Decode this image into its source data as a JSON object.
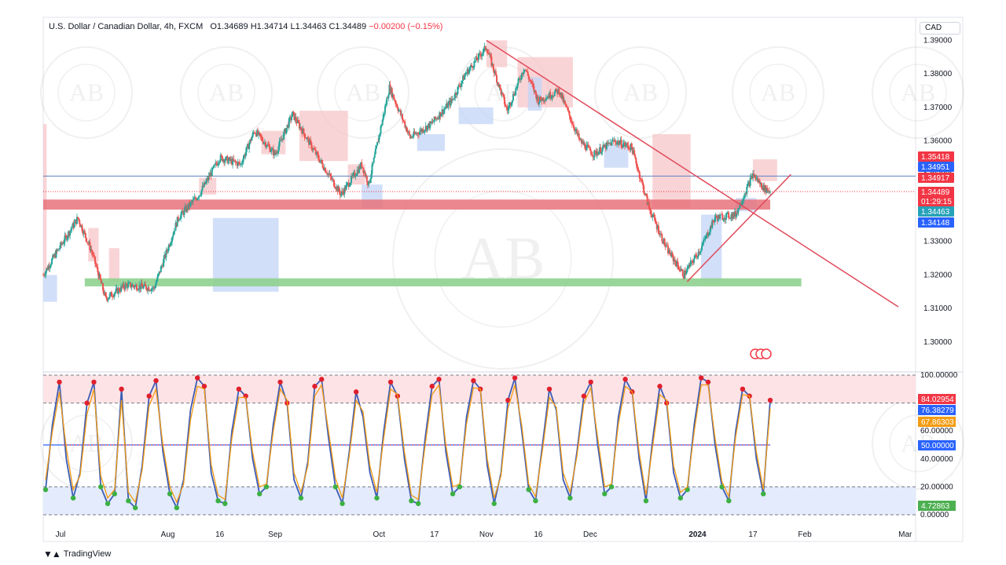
{
  "header": {
    "symbol": "U.S. Dollar / Canadian Dollar, 4h, FXCM",
    "open": "O1.34689",
    "high": "H1.34714",
    "low": "L1.34463",
    "close": "C1.34489",
    "change": "−0.00200 (−0.15%)"
  },
  "currency_button": "CAD",
  "footer": {
    "brand": "TradingView"
  },
  "watermark": {
    "letters": "AB"
  },
  "colors": {
    "up": "#26a69a",
    "down": "#ef5350",
    "supply_zone": "#f7c5c8",
    "demand_zone": "#c3d4f7",
    "resistance_band": "#e8727b",
    "support_band": "#8fd18f",
    "trendline": "#e04a5a",
    "stoch_k": "#3d5bb5",
    "stoch_d": "#f39c12"
  },
  "chart_data": [
    {
      "type": "candlestick",
      "title": "U.S. Dollar / Canadian Dollar, 4h, FXCM",
      "ylim": [
        1.292,
        1.3915
      ],
      "y_ticks": [
        "1.39000",
        "1.38000",
        "1.37000",
        "1.36000",
        "1.35000",
        "1.34000",
        "1.33000",
        "1.32000",
        "1.31000",
        "1.30000"
      ],
      "x_ticks": [
        "Jul",
        "Aug",
        "16",
        "Sep",
        "Oct",
        "17",
        "Nov",
        "16",
        "Dec",
        "2024",
        "17",
        "Feb",
        "Mar"
      ],
      "price_path": [
        [
          "2023-06-26",
          1.32
        ],
        [
          "2023-06-30",
          1.327
        ],
        [
          "2023-07-06",
          1.337
        ],
        [
          "2023-07-10",
          1.327
        ],
        [
          "2023-07-14",
          1.313
        ],
        [
          "2023-07-20",
          1.317
        ],
        [
          "2023-07-28",
          1.316
        ],
        [
          "2023-08-04",
          1.337
        ],
        [
          "2023-08-10",
          1.344
        ],
        [
          "2023-08-16",
          1.355
        ],
        [
          "2023-08-22",
          1.353
        ],
        [
          "2023-08-26",
          1.363
        ],
        [
          "2023-09-01",
          1.356
        ],
        [
          "2023-09-06",
          1.368
        ],
        [
          "2023-09-14",
          1.354
        ],
        [
          "2023-09-20",
          1.344
        ],
        [
          "2023-09-26",
          1.353
        ],
        [
          "2023-09-28",
          1.347
        ],
        [
          "2023-10-04",
          1.376
        ],
        [
          "2023-10-10",
          1.361
        ],
        [
          "2023-10-16",
          1.365
        ],
        [
          "2023-10-22",
          1.372
        ],
        [
          "2023-10-26",
          1.38
        ],
        [
          "2023-11-01",
          1.388
        ],
        [
          "2023-11-07",
          1.369
        ],
        [
          "2023-11-12",
          1.382
        ],
        [
          "2023-11-16",
          1.372
        ],
        [
          "2023-11-22",
          1.375
        ],
        [
          "2023-11-28",
          1.36
        ],
        [
          "2023-12-02",
          1.356
        ],
        [
          "2023-12-08",
          1.36
        ],
        [
          "2023-12-13",
          1.358
        ],
        [
          "2023-12-18",
          1.34
        ],
        [
          "2023-12-23",
          1.328
        ],
        [
          "2023-12-28",
          1.32
        ],
        [
          "2024-01-02",
          1.328
        ],
        [
          "2024-01-06",
          1.337
        ],
        [
          "2024-01-12",
          1.338
        ],
        [
          "2024-01-17",
          1.35
        ],
        [
          "2024-01-20",
          1.346
        ],
        [
          "2024-01-22",
          1.3449
        ]
      ],
      "last_close": 1.34489,
      "countdown": "01:29:15",
      "price_tags": [
        {
          "value": "1.35418",
          "color": "#f23645"
        },
        {
          "value": "1.34951",
          "color": "#2962ff"
        },
        {
          "value": "1.34917",
          "color": "#f23645"
        },
        {
          "value": "1.34489",
          "color": "#f23645"
        },
        {
          "value": "1.34463",
          "color": "#26a2b8"
        },
        {
          "value": "1.34148",
          "color": "#2962ff"
        }
      ],
      "support_band": [
        1.3166,
        1.319
      ],
      "resistance_band": [
        1.3395,
        1.3425
      ],
      "horizontal_line": 1.3495,
      "trendlines": [
        {
          "from": [
            "2023-11-01",
            1.39
          ],
          "to": [
            "2024-02-28",
            1.3105
          ]
        },
        {
          "from": [
            "2023-12-29",
            1.318
          ],
          "to": [
            "2024-01-28",
            1.35
          ]
        }
      ]
    },
    {
      "type": "line",
      "title": "",
      "ylim": [
        0,
        100
      ],
      "y_ticks": [
        "100.00000",
        "60.00000",
        "40.00000",
        "20.00000",
        "0.00000"
      ],
      "levels": [
        80,
        50,
        20
      ],
      "series": [
        {
          "values": [
            18,
            65,
            95,
            40,
            12,
            30,
            80,
            95,
            20,
            8,
            15,
            90,
            10,
            5,
            35,
            85,
            96,
            45,
            15,
            5,
            25,
            75,
            98,
            92,
            30,
            10,
            8,
            60,
            90,
            85,
            40,
            15,
            20,
            65,
            95,
            80,
            25,
            12,
            38,
            92,
            97,
            55,
            20,
            8,
            45,
            88,
            70,
            30,
            12,
            60,
            95,
            85,
            40,
            10,
            8,
            55,
            92,
            97,
            45,
            15,
            20,
            70,
            96,
            90,
            35,
            8,
            30,
            82,
            98,
            60,
            18,
            10,
            50,
            90,
            75,
            25,
            12,
            45,
            85,
            95,
            50,
            15,
            20,
            70,
            97,
            88,
            40,
            10,
            55,
            92,
            80,
            30,
            12,
            18,
            65,
            98,
            95,
            50,
            20,
            10,
            60,
            90,
            85,
            40,
            15,
            82
          ]
        },
        {
          "values": [
            25,
            60,
            88,
            48,
            18,
            28,
            72,
            90,
            28,
            12,
            18,
            82,
            16,
            9,
            32,
            78,
            90,
            50,
            20,
            9,
            22,
            68,
            92,
            90,
            36,
            14,
            11,
            55,
            84,
            84,
            45,
            20,
            22,
            60,
            90,
            82,
            30,
            16,
            35,
            85,
            93,
            60,
            26,
            12,
            42,
            82,
            74,
            35,
            16,
            55,
            90,
            86,
            45,
            14,
            11,
            50,
            86,
            93,
            50,
            20,
            22,
            65,
            91,
            90,
            40,
            12,
            28,
            76,
            93,
            64,
            22,
            13,
            46,
            84,
            77,
            30,
            16,
            42,
            80,
            91,
            55,
            20,
            22,
            65,
            92,
            88,
            45,
            14,
            50,
            86,
            82,
            35,
            16,
            20,
            60,
            93,
            93,
            55,
            24,
            13,
            56,
            86,
            85,
            45,
            18,
            76
          ]
        }
      ],
      "value_tags": [
        {
          "value": "84.02954",
          "color": "#f23645"
        },
        {
          "value": "76.38279",
          "color": "#2962ff"
        },
        {
          "value": "67.86303",
          "color": "#f39c12"
        },
        {
          "value": "50.00000",
          "color": "#2962ff"
        },
        {
          "value": "4.72863",
          "color": "#4caf50"
        }
      ]
    }
  ]
}
